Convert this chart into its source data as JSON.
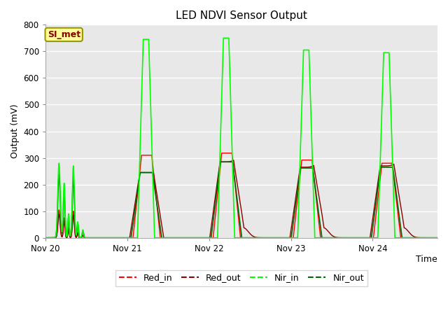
{
  "title": "LED NDVI Sensor Output",
  "xlabel": "Time",
  "ylabel": "Output (mV)",
  "ylim": [
    0,
    800
  ],
  "yticks": [
    0,
    100,
    200,
    300,
    400,
    500,
    600,
    700,
    800
  ],
  "xtick_labels": [
    "Nov 20",
    "Nov 21",
    "Nov 22",
    "Nov 23",
    "Nov 24"
  ],
  "plot_bg_color": "#e8e8e8",
  "fig_bg_color": "#ffffff",
  "grid_color": "#ffffff",
  "annotation_text": "SI_met",
  "annotation_bg": "#ffff99",
  "annotation_border": "#999900",
  "color_red_in": "#ff0000",
  "color_red_out": "#8b0000",
  "color_nir_in": "#00ff00",
  "color_nir_out": "#006400",
  "legend_labels": [
    "Red_in",
    "Red_out",
    "Nir_in",
    "Nir_out"
  ]
}
